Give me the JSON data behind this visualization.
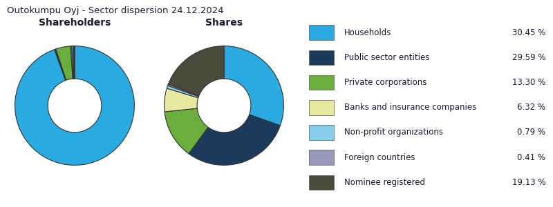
{
  "title": "Outokumpu Oyj - Sector dispersion 24.12.2024",
  "chart1_title": "Shareholders",
  "chart2_title": "Shares",
  "categories": [
    "Households",
    "Public sector entities",
    "Private corporations",
    "Banks and insurance companies",
    "Non-profit organizations",
    "Foreign countries",
    "Nominee registered"
  ],
  "colors": [
    "#29ABE2",
    "#1B3A5C",
    "#6AAF3D",
    "#E8E8A0",
    "#87CEEB",
    "#9999BB",
    "#4A4A3A"
  ],
  "shareholders_pct": [
    94.5,
    0.4,
    4.0,
    0.3,
    0.4,
    0.2,
    0.2
  ],
  "shares_pct": [
    30.45,
    29.59,
    13.3,
    6.32,
    0.79,
    0.41,
    19.13
  ],
  "legend_pct": [
    "30.45 %",
    "29.59 %",
    "13.30 %",
    "6.32 %",
    "0.79 %",
    "0.41 %",
    "19.13 %"
  ],
  "background_color": "#FFFFFF",
  "text_color": "#1a1a2e",
  "title_fontsize": 9.5,
  "subtitle_fontsize": 10,
  "legend_fontsize": 8.5,
  "donut_width": 0.55,
  "edge_color": "#333333",
  "edge_linewidth": 0.8
}
